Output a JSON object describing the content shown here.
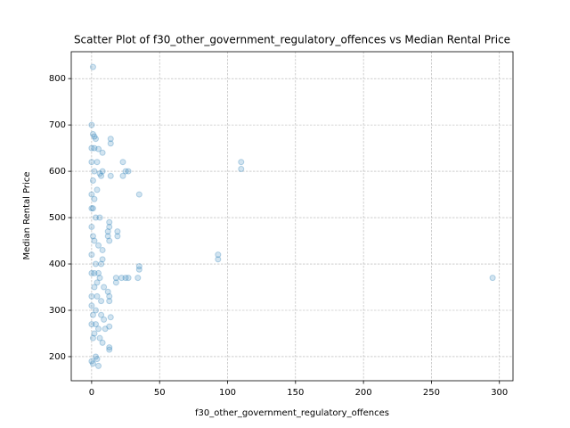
{
  "chart_data": {
    "type": "scatter",
    "title": "Scatter Plot of f30_other_government_regulatory_offences vs Median Rental Price",
    "x_label": "f30_other_government_regulatory_offences",
    "y_label": "Median Rental Price",
    "color": "#1f77b4",
    "grid": true,
    "xlim": [
      -15,
      310
    ],
    "ylim": [
      148,
      858
    ],
    "xticks": [
      0,
      50,
      100,
      150,
      200,
      250,
      300
    ],
    "yticks": [
      200,
      300,
      400,
      500,
      600,
      700,
      800
    ],
    "x": [
      1,
      0,
      1,
      2,
      3,
      0,
      2,
      5,
      8,
      14,
      14,
      8,
      2,
      6,
      14,
      7,
      23,
      23,
      25,
      27,
      35,
      4,
      0,
      2,
      1,
      3,
      0,
      13,
      13,
      12,
      19,
      19,
      12,
      13,
      2,
      5,
      8,
      0,
      8,
      7,
      3,
      93,
      93,
      110,
      110,
      35,
      35,
      0,
      2,
      6,
      18,
      22,
      25,
      27,
      34,
      295,
      18,
      4,
      9,
      12,
      13,
      7,
      13,
      3,
      7,
      14,
      9,
      0,
      13,
      5,
      10,
      2,
      6,
      8,
      13,
      13,
      3,
      4,
      0,
      1,
      5,
      0,
      0,
      1,
      0,
      1,
      0,
      1,
      2,
      1,
      4,
      3,
      5,
      6,
      4
    ],
    "y": [
      825,
      700,
      680,
      675,
      670,
      650,
      650,
      648,
      640,
      670,
      660,
      600,
      600,
      595,
      590,
      590,
      620,
      590,
      600,
      600,
      550,
      560,
      550,
      540,
      520,
      500,
      480,
      490,
      480,
      470,
      470,
      460,
      460,
      450,
      450,
      440,
      430,
      420,
      410,
      400,
      400,
      420,
      410,
      620,
      605,
      395,
      388,
      380,
      380,
      370,
      370,
      370,
      370,
      370,
      370,
      370,
      360,
      360,
      350,
      340,
      330,
      320,
      320,
      300,
      290,
      285,
      280,
      270,
      265,
      260,
      260,
      250,
      240,
      230,
      220,
      215,
      200,
      195,
      190,
      185,
      180,
      330,
      310,
      290,
      620,
      580,
      520,
      460,
      350,
      240,
      330,
      270,
      380,
      500,
      620
    ]
  }
}
